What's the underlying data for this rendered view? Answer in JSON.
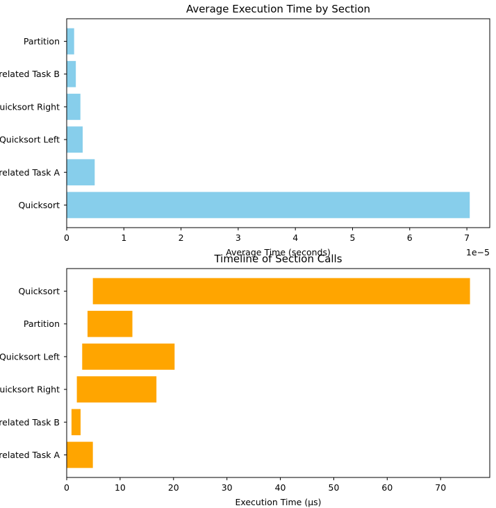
{
  "chart_data": [
    {
      "type": "bar",
      "orientation": "horizontal",
      "title": "Average Execution Time by Section",
      "xlabel": "Average Time (seconds)",
      "ylabel": "",
      "x_offset_label": "1e−5",
      "x_tick_labels": [
        "0",
        "1",
        "2",
        "3",
        "4",
        "5",
        "6",
        "7"
      ],
      "xlim": [
        0,
        7.4
      ],
      "x_scale_display": 1e-05,
      "grid": false,
      "categories": [
        "Quicksort",
        "Unrelated Task A",
        "Quicksort Left",
        "Quicksort Right",
        "Unrelated Task B",
        "Partition"
      ],
      "values": [
        7.05e-05,
        4.9e-06,
        2.8e-06,
        2.4e-06,
        1.6e-06,
        1.3e-06
      ],
      "colors": {
        "bar": "#87ceeb"
      }
    },
    {
      "type": "bar",
      "orientation": "horizontal",
      "subtype": "timeline",
      "title": "Timeline of Section Calls",
      "xlabel": "Execution Time (µs)",
      "ylabel": "",
      "x_tick_labels": [
        "0",
        "10",
        "20",
        "30",
        "40",
        "50",
        "60",
        "70"
      ],
      "xlim": [
        0,
        79.2
      ],
      "grid": false,
      "categories": [
        "Unrelated Task A",
        "Unrelated Task B",
        "Quicksort Right",
        "Quicksort Left",
        "Partition",
        "Quicksort"
      ],
      "starts": [
        0,
        0.9,
        1.9,
        2.9,
        3.9,
        4.9
      ],
      "ends": [
        4.9,
        2.6,
        16.8,
        20.2,
        12.3,
        75.5
      ],
      "colors": {
        "bar": "#ffa500"
      }
    }
  ]
}
